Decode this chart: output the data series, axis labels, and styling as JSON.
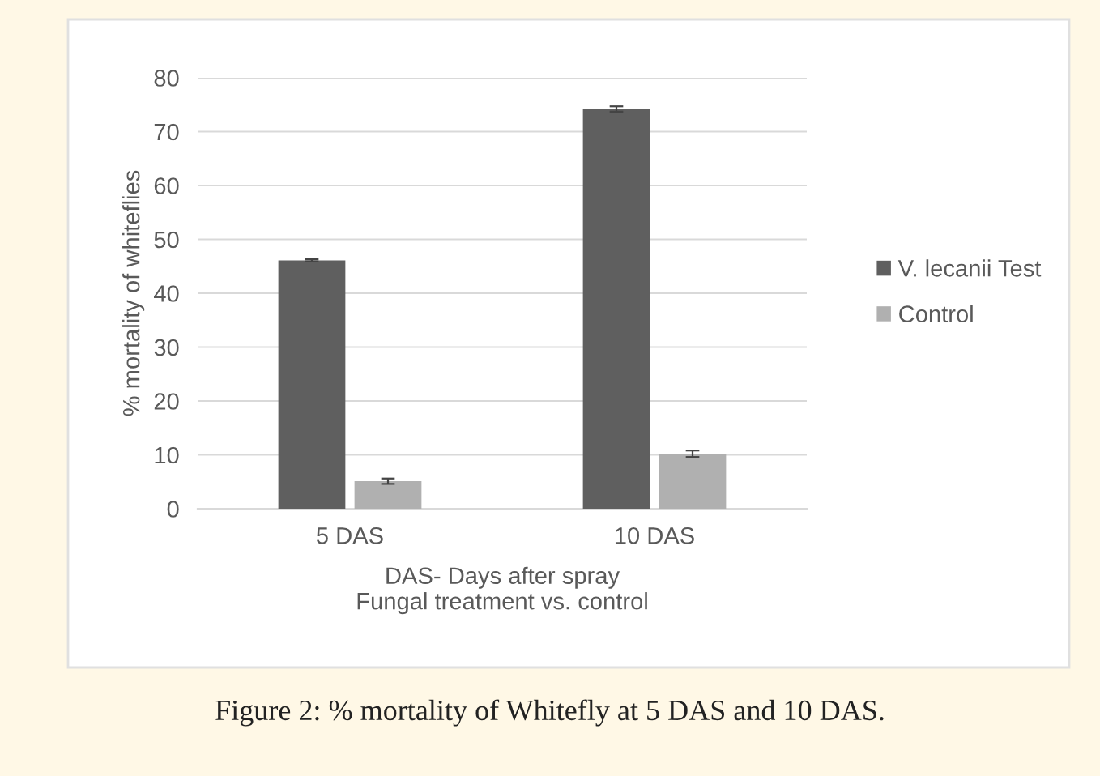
{
  "chart_data": {
    "type": "bar",
    "categories": [
      "5 DAS",
      "10 DAS"
    ],
    "series": [
      {
        "name": "V. lecanii Test",
        "color": "#5f5f5f",
        "values": [
          46.1,
          74.2
        ],
        "errors": [
          0.2,
          0.5
        ]
      },
      {
        "name": "Control",
        "color": "#b0b0b0",
        "values": [
          5.1,
          10.2
        ],
        "errors": [
          0.5,
          0.6
        ]
      }
    ],
    "ylabel": "% mortality of whiteflies",
    "xlabel": "DAS- Days after spray\nFungal treatment vs. control",
    "ylim": [
      0,
      80
    ],
    "yticks": [
      0,
      10,
      20,
      30,
      40,
      50,
      60,
      70,
      80
    ],
    "grid": "y",
    "legend": "right",
    "annotations": [
      "Figure 2: % mortality of Whitefly at 5 DAS and 10 DAS."
    ]
  }
}
